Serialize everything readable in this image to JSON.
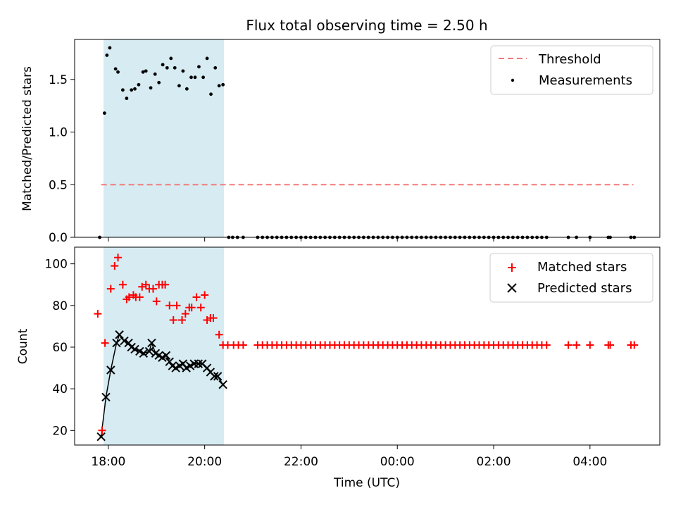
{
  "chart_data": [
    {
      "type": "scatter",
      "title": "Flux total observing time = 2.50 h",
      "xlabel": "",
      "ylabel": "Matched/Predicted stars",
      "xlim_hours": [
        17.3,
        29.45
      ],
      "ylim": [
        0,
        1.88
      ],
      "yticks": [
        0.0,
        0.5,
        1.0,
        1.5
      ],
      "ytick_labels": [
        "0.0",
        "0.5",
        "1.0",
        "1.5"
      ],
      "xticks_hours": [
        18,
        20,
        22,
        24,
        26,
        28
      ],
      "shaded_span_hours": [
        17.9,
        20.4
      ],
      "legend": {
        "location": "upper right",
        "entries": [
          "Threshold",
          "Measurements"
        ]
      },
      "colors": {
        "threshold": "#f47a7a",
        "measurements": "#000000",
        "span": "#add8e6"
      },
      "threshold": {
        "name": "Threshold",
        "value": 0.5,
        "x_range_hours": [
          17.85,
          28.9
        ]
      },
      "measurements": {
        "name": "Measurements",
        "x_hours": [
          17.82,
          17.92,
          17.97,
          18.03,
          18.15,
          18.2,
          18.3,
          18.38,
          18.48,
          18.55,
          18.63,
          18.72,
          18.78,
          18.88,
          18.97,
          19.05,
          19.13,
          19.22,
          19.3,
          19.38,
          19.47,
          19.55,
          19.63,
          19.72,
          19.8,
          19.88,
          19.97,
          20.05,
          20.13,
          20.22,
          20.3,
          20.38,
          20.5,
          20.58,
          20.68,
          20.8,
          21.1,
          21.2,
          21.3,
          21.4,
          21.5,
          21.6,
          21.7,
          21.8,
          21.9,
          22.0,
          22.1,
          22.2,
          22.3,
          22.4,
          22.5,
          22.6,
          22.7,
          22.8,
          22.9,
          23.0,
          23.1,
          23.2,
          23.3,
          23.4,
          23.5,
          23.6,
          23.7,
          23.8,
          23.9,
          24.0,
          24.1,
          24.2,
          24.3,
          24.4,
          24.5,
          24.6,
          24.7,
          24.8,
          24.9,
          25.0,
          25.1,
          25.2,
          25.3,
          25.4,
          25.5,
          25.6,
          25.7,
          25.8,
          25.9,
          26.0,
          26.1,
          26.2,
          26.3,
          26.4,
          26.5,
          26.6,
          26.7,
          26.8,
          26.9,
          27.0,
          27.1,
          27.55,
          27.72,
          28.0,
          28.38,
          28.42,
          28.85,
          28.92
        ],
        "y": [
          0.0,
          1.18,
          1.73,
          1.8,
          1.6,
          1.57,
          1.4,
          1.32,
          1.4,
          1.41,
          1.45,
          1.57,
          1.58,
          1.42,
          1.55,
          1.47,
          1.64,
          1.61,
          1.7,
          1.61,
          1.44,
          1.58,
          1.41,
          1.52,
          1.52,
          1.62,
          1.52,
          1.7,
          1.36,
          1.61,
          1.44,
          1.45,
          0.0,
          0.0,
          0.0,
          0.0,
          0.0,
          0.0,
          0.0,
          0.0,
          0.0,
          0.0,
          0.0,
          0.0,
          0.0,
          0.0,
          0.0,
          0.0,
          0.0,
          0.0,
          0.0,
          0.0,
          0.0,
          0.0,
          0.0,
          0.0,
          0.0,
          0.0,
          0.0,
          0.0,
          0.0,
          0.0,
          0.0,
          0.0,
          0.0,
          0.0,
          0.0,
          0.0,
          0.0,
          0.0,
          0.0,
          0.0,
          0.0,
          0.0,
          0.0,
          0.0,
          0.0,
          0.0,
          0.0,
          0.0,
          0.0,
          0.0,
          0.0,
          0.0,
          0.0,
          0.0,
          0.0,
          0.0,
          0.0,
          0.0,
          0.0,
          0.0,
          0.0,
          0.0,
          0.0,
          0.0,
          0.0,
          0.0,
          0.0,
          0.0,
          0.0,
          0.0,
          0.0,
          0.0
        ]
      }
    },
    {
      "type": "scatter",
      "title": "",
      "xlabel": "Time (UTC)",
      "ylabel": "Count",
      "xlim_hours": [
        17.3,
        29.45
      ],
      "ylim": [
        13,
        108
      ],
      "yticks": [
        20,
        40,
        60,
        80,
        100
      ],
      "ytick_labels": [
        "20",
        "40",
        "60",
        "80",
        "100"
      ],
      "xticks_hours": [
        18,
        20,
        22,
        24,
        26,
        28
      ],
      "xtick_labels": [
        "18:00",
        "20:00",
        "22:00",
        "00:00",
        "02:00",
        "04:00"
      ],
      "shaded_span_hours": [
        17.9,
        20.4
      ],
      "legend": {
        "location": "upper right",
        "entries": [
          "Matched stars",
          "Predicted stars"
        ]
      },
      "colors": {
        "matched": "#ff0000",
        "predicted": "#000000",
        "span": "#add8e6"
      },
      "series": [
        {
          "name": "Matched stars",
          "marker": "+",
          "x_hours": [
            17.78,
            17.87,
            17.93,
            18.05,
            18.13,
            18.2,
            18.3,
            18.38,
            18.43,
            18.52,
            18.57,
            18.65,
            18.7,
            18.78,
            18.85,
            18.93,
            19.0,
            19.05,
            19.12,
            19.18,
            19.27,
            19.35,
            19.42,
            19.53,
            19.6,
            19.68,
            19.73,
            19.83,
            19.92,
            20.0,
            20.05,
            20.12,
            20.18,
            20.3,
            20.38,
            20.48,
            20.6,
            20.7,
            20.8,
            21.1,
            21.2,
            21.3,
            21.4,
            21.5,
            21.6,
            21.7,
            21.8,
            21.9,
            22.0,
            22.1,
            22.2,
            22.3,
            22.4,
            22.5,
            22.6,
            22.7,
            22.8,
            22.9,
            23.0,
            23.1,
            23.2,
            23.3,
            23.4,
            23.5,
            23.6,
            23.7,
            23.8,
            23.9,
            24.0,
            24.1,
            24.2,
            24.3,
            24.4,
            24.5,
            24.6,
            24.7,
            24.8,
            24.9,
            25.0,
            25.1,
            25.2,
            25.3,
            25.4,
            25.5,
            25.6,
            25.7,
            25.8,
            25.9,
            26.0,
            26.1,
            26.2,
            26.3,
            26.4,
            26.5,
            26.6,
            26.7,
            26.8,
            26.9,
            27.0,
            27.1,
            27.55,
            27.72,
            28.0,
            28.38,
            28.42,
            28.85,
            28.92
          ],
          "values": [
            76,
            20,
            62,
            88,
            99,
            103,
            90,
            83,
            84,
            85,
            84,
            84,
            89,
            90,
            88,
            88,
            82,
            90,
            90,
            90,
            80,
            73,
            80,
            73,
            76,
            79,
            79,
            84,
            79,
            85,
            73,
            74,
            74,
            66,
            61,
            61,
            61,
            61,
            61,
            61,
            61,
            61,
            61,
            61,
            61,
            61,
            61,
            61,
            61,
            61,
            61,
            61,
            61,
            61,
            61,
            61,
            61,
            61,
            61,
            61,
            61,
            61,
            61,
            61,
            61,
            61,
            61,
            61,
            61,
            61,
            61,
            61,
            61,
            61,
            61,
            61,
            61,
            61,
            61,
            61,
            61,
            61,
            61,
            61,
            61,
            61,
            61,
            61,
            61,
            61,
            61,
            61,
            61,
            61,
            61,
            61,
            61,
            61,
            61,
            61,
            61,
            61,
            61,
            61,
            61,
            61,
            61
          ]
        },
        {
          "name": "Predicted stars",
          "marker": "x",
          "x_hours": [
            17.85,
            17.95,
            18.05,
            18.17,
            18.23,
            18.33,
            18.42,
            18.48,
            18.55,
            18.65,
            18.73,
            18.85,
            18.9,
            18.98,
            19.05,
            19.12,
            19.2,
            19.27,
            19.33,
            19.4,
            19.48,
            19.55,
            19.62,
            19.7,
            19.78,
            19.87,
            19.95,
            20.05,
            20.12,
            20.2,
            20.27,
            20.38
          ],
          "values": [
            17,
            36,
            49,
            62,
            66,
            63,
            62,
            60,
            59,
            58,
            57,
            58,
            62,
            57,
            56,
            55,
            56,
            53,
            51,
            50,
            51,
            52,
            50,
            51,
            52,
            52,
            52,
            50,
            48,
            46,
            46,
            42
          ]
        }
      ]
    }
  ]
}
